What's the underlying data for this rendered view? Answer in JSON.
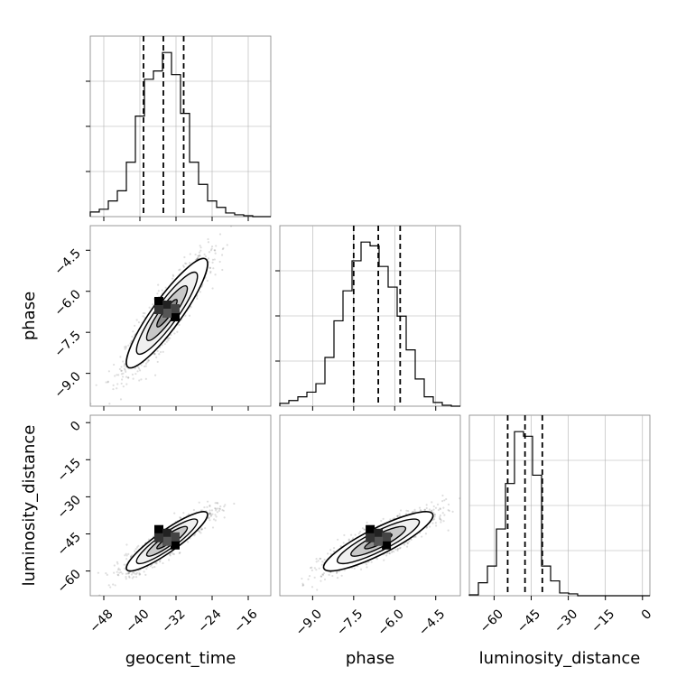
{
  "chart_data": {
    "type": "corner",
    "parameters": [
      {
        "name": "geocent_time",
        "label": "geocent_time",
        "range": [
          -51,
          -11
        ],
        "ticks": [
          -48,
          -40,
          -32,
          -24,
          -16
        ],
        "tick_labels": [
          "−48",
          "−40",
          "−32",
          "−24",
          "−16"
        ],
        "quantiles": [
          -39.2,
          -34.8,
          -30.3
        ],
        "hist_edges": [
          -51,
          -49,
          -47,
          -45,
          -43,
          -41,
          -39,
          -37,
          -35,
          -33,
          -31,
          -29,
          -27,
          -25,
          -23,
          -21,
          -19,
          -17,
          -15,
          -13,
          -11
        ],
        "hist_counts": [
          5,
          8,
          17,
          28,
          59,
          109,
          149,
          158,
          178,
          154,
          112,
          59,
          35,
          17,
          10,
          4,
          2,
          1,
          0,
          0
        ]
      },
      {
        "name": "phase",
        "label": "phase",
        "range": [
          -10.2,
          -3.6
        ],
        "ticks": [
          -9.0,
          -7.5,
          -6.0,
          -4.5
        ],
        "tick_labels": [
          "−9.0",
          "−7.5",
          "−6.0",
          "−4.5"
        ],
        "quantiles": [
          -7.5,
          -6.6,
          -5.8
        ],
        "hist_edges": [
          -10.2,
          -9.87,
          -9.54,
          -9.21,
          -8.88,
          -8.55,
          -8.22,
          -7.89,
          -7.56,
          -7.23,
          -6.9,
          -6.57,
          -6.24,
          -5.91,
          -5.58,
          -5.25,
          -4.92,
          -4.59,
          -4.26,
          -3.93,
          -3.6
        ],
        "hist_counts": [
          3,
          6,
          10,
          15,
          24,
          52,
          91,
          123,
          155,
          175,
          171,
          149,
          127,
          96,
          60,
          29,
          10,
          4,
          1,
          0
        ]
      },
      {
        "name": "luminosity_distance",
        "label": "luminosity_distance",
        "range": [
          -70,
          3
        ],
        "ticks": [
          -60,
          -45,
          -30,
          -15,
          0
        ],
        "tick_labels": [
          "−60",
          "−45",
          "−30",
          "−15",
          "0"
        ],
        "quantiles": [
          -54.5,
          -47.5,
          -40.5
        ],
        "hist_edges": [
          -70,
          -66.35,
          -62.7,
          -59.05,
          -55.4,
          -51.75,
          -48.1,
          -44.45,
          -40.8,
          -37.15,
          -33.5,
          -29.85,
          -26.2,
          -22.55,
          -18.9,
          -15.25,
          -11.6,
          -7.95,
          -4.3,
          -0.65,
          3
        ],
        "hist_counts": [
          1,
          14,
          32,
          72,
          121,
          177,
          172,
          130,
          32,
          16,
          3,
          2,
          0,
          0,
          0,
          0,
          0,
          0,
          0,
          0
        ]
      }
    ],
    "panels": [
      {
        "row": 1,
        "col": 0,
        "x": "geocent_time",
        "y": "phase",
        "y_ticks": [
          -9.0,
          -7.5,
          -6.0,
          -4.5
        ],
        "y_tick_labels": [
          "−9.0",
          "−7.5",
          "−6.0",
          "−4.5"
        ],
        "center": [
          -34,
          -6.8
        ],
        "sd": [
          4.5,
          1.0
        ],
        "corr": 0.9
      },
      {
        "row": 2,
        "col": 0,
        "x": "geocent_time",
        "y": "luminosity_distance",
        "y_ticks": [
          -60,
          -45,
          -30,
          -15,
          0
        ],
        "y_tick_labels": [
          "−60",
          "−45",
          "−30",
          "−15",
          "0"
        ],
        "center": [
          -34,
          -48
        ],
        "sd": [
          4.5,
          6.0
        ],
        "corr": 0.9
      },
      {
        "row": 2,
        "col": 1,
        "x": "phase",
        "y": "luminosity_distance",
        "y_ticks": [
          -60,
          -45,
          -30,
          -15,
          0
        ],
        "y_tick_labels": [
          "−60",
          "−45",
          "−30",
          "−15",
          "0"
        ],
        "center": [
          -6.6,
          -48
        ],
        "sd": [
          1.0,
          6.0
        ],
        "corr": 0.87
      }
    ],
    "contour_levels_sigma": [
      0.5,
      1.0,
      1.5,
      2.0
    ],
    "grid": true,
    "colors": {
      "contour": "#000000",
      "points": "#000000",
      "grid": "#b0b0b0",
      "axes": "#808080"
    }
  }
}
